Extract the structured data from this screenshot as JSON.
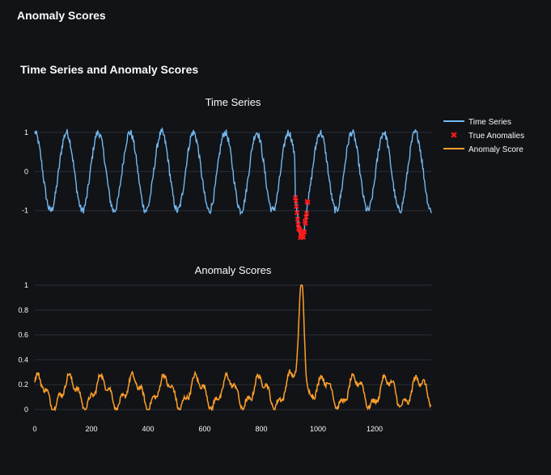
{
  "header": {
    "title": "Anomaly Scores"
  },
  "section": {
    "title": "Time Series and Anomaly Scores"
  },
  "colors": {
    "background": "#111317",
    "time_series": "#74b9f0",
    "anomaly_marker": "#ff1a1a",
    "anomaly_score": "#ff9f2a",
    "grid": "#2b2f36"
  },
  "chart_data": [
    {
      "type": "line",
      "title": "Time Series",
      "xlabel": "",
      "ylabel": "",
      "xlim": [
        0,
        1400
      ],
      "ylim": [
        -1.75,
        1.35
      ],
      "yticks": [
        1,
        0,
        -1
      ],
      "grid": true,
      "legend_placement": "top-right",
      "series": [
        {
          "name": "Time Series",
          "mode": "line",
          "period": 112,
          "amplitude": 1.0,
          "noise_amplitude": 0.1,
          "x_start": 0,
          "x_end": 1400
        },
        {
          "name": "True Anomalies",
          "mode": "markers",
          "x_range": [
            920,
            965
          ],
          "y_range": [
            -1.68,
            -0.62
          ]
        }
      ]
    },
    {
      "type": "line",
      "title": "Anomaly Scores",
      "xlabel": "",
      "ylabel": "",
      "xlim": [
        0,
        1400
      ],
      "ylim": [
        0,
        1
      ],
      "xticks": [
        0,
        200,
        400,
        600,
        800,
        1000,
        1200
      ],
      "yticks": [
        1,
        0.8,
        0.6,
        0.4,
        0.2,
        0
      ],
      "grid": true,
      "series": [
        {
          "name": "Anomaly Score",
          "mode": "line",
          "baseline_range": [
            0,
            0.3
          ],
          "peak_x": 943,
          "peak_y": 1.0
        }
      ]
    }
  ],
  "legend": [
    {
      "label": "Time Series",
      "kind": "line",
      "color": "#74b9f0"
    },
    {
      "label": "True Anomalies",
      "kind": "x-marker",
      "color": "#ff1a1a"
    },
    {
      "label": "Anomaly Score",
      "kind": "line",
      "color": "#ff9f2a"
    }
  ]
}
